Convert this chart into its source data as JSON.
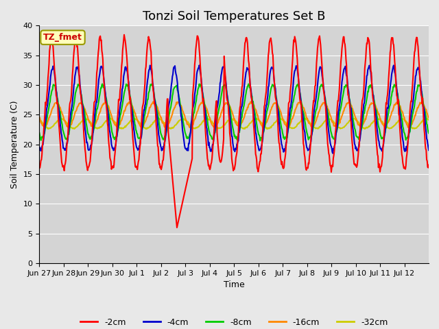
{
  "title": "Tonzi Soil Temperatures Set B",
  "xlabel": "Time",
  "ylabel": "Soil Temperature (C)",
  "ylim": [
    0,
    40
  ],
  "yticks": [
    0,
    5,
    10,
    15,
    20,
    25,
    30,
    35,
    40
  ],
  "xtick_labels": [
    "Jun 27",
    "Jun 28",
    "Jun 29",
    "Jun 30",
    "Jul 1",
    "Jul 2",
    "Jul 3",
    "Jul 4",
    "Jul 5",
    "Jul 6",
    "Jul 7",
    "Jul 8",
    "Jul 9",
    "Jul 10",
    "Jul 11",
    "Jul 12"
  ],
  "legend_label": "TZ_fmet",
  "series_labels": [
    "-2cm",
    "-4cm",
    "-8cm",
    "-16cm",
    "-32cm"
  ],
  "series_colors": [
    "#ff0000",
    "#0000cc",
    "#00cc00",
    "#ff8800",
    "#cccc00"
  ],
  "fig_facecolor": "#e8e8e8",
  "plot_bg_color": "#d4d4d4",
  "title_fontsize": 13,
  "label_fontsize": 9,
  "tick_fontsize": 8
}
